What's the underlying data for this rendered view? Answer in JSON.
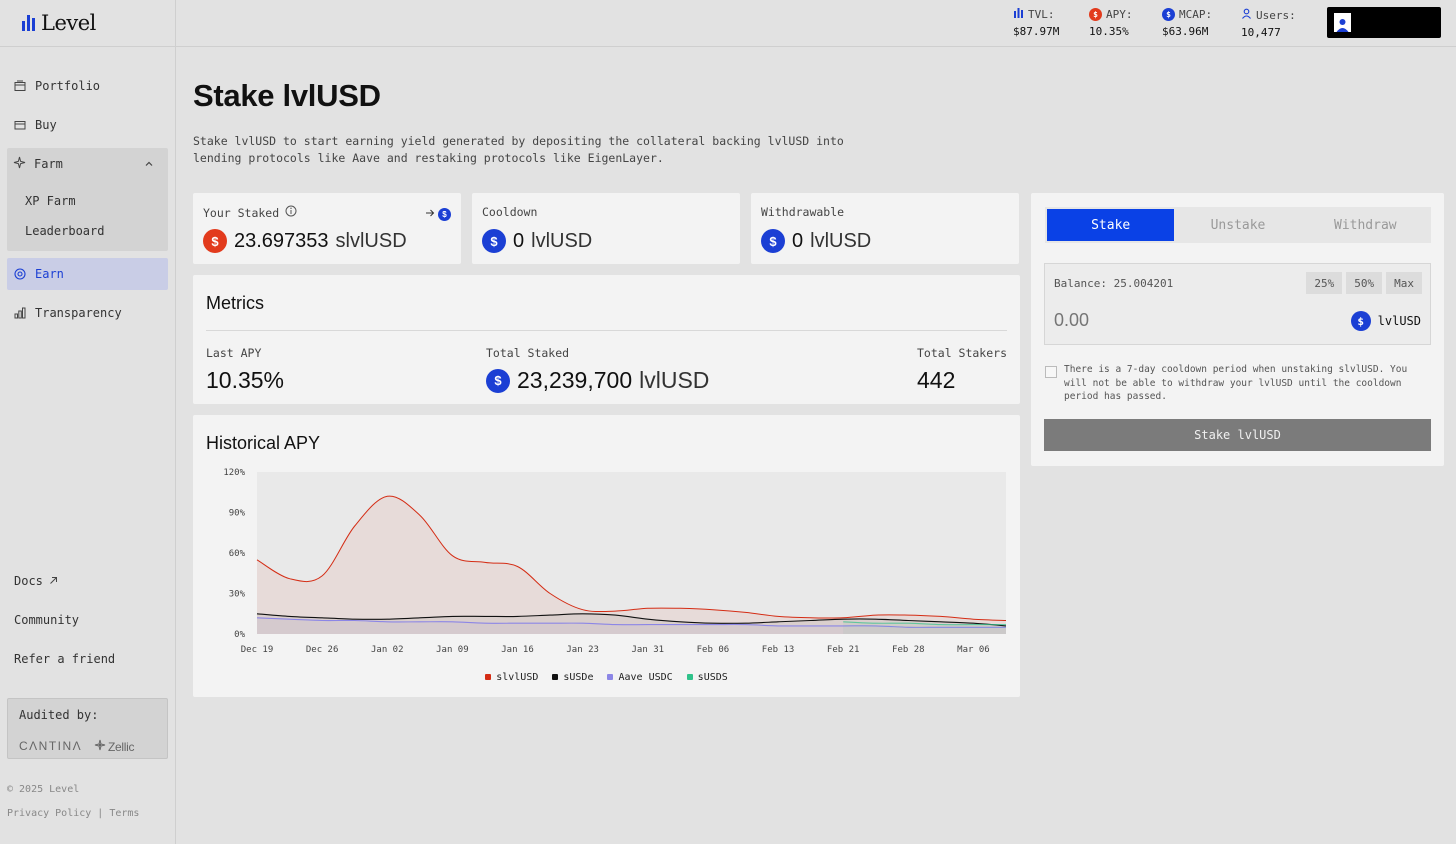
{
  "brand": {
    "name": "Level",
    "accent": "#1b3fd4"
  },
  "sidebar": {
    "items": [
      {
        "label": "Portfolio",
        "icon": "wallet-icon"
      },
      {
        "label": "Buy",
        "icon": "card-icon"
      },
      {
        "label": "Farm",
        "icon": "sparkle-icon",
        "expanded": true,
        "children": [
          "XP Farm",
          "Leaderboard"
        ]
      },
      {
        "label": "Earn",
        "icon": "target-icon",
        "active": true
      },
      {
        "label": "Transparency",
        "icon": "bar-chart-icon"
      }
    ],
    "links": [
      "Docs",
      "Community",
      "Refer a friend"
    ],
    "audit": {
      "title": "Audited by:",
      "auditors": [
        "CΛNTINΛ",
        "Zellic"
      ]
    },
    "copyright": "© 2025 Level",
    "legal": [
      "Privacy Policy",
      "|",
      "Terms"
    ]
  },
  "topbar": {
    "stats": [
      {
        "label": "TVL:",
        "value": "$87.97M",
        "icon": "level-icon"
      },
      {
        "label": "APY:",
        "value": "10.35%",
        "icon": "slvlusd-coin-icon"
      },
      {
        "label": "MCAP:",
        "value": "$63.96M",
        "icon": "lvlusd-coin-icon"
      },
      {
        "label": "Users:",
        "value": "10,477",
        "icon": "user-icon"
      }
    ]
  },
  "page": {
    "title": "Stake lvlUSD",
    "description": "Stake lvlUSD to start earning yield generated by depositing the collateral backing lvlUSD into lending protocols like Aave and restaking protocols like EigenLayer."
  },
  "cards": {
    "staked": {
      "label": "Your Staked",
      "amount": "23.697353",
      "unit": "slvlUSD"
    },
    "cooldown": {
      "label": "Cooldown",
      "amount": "0",
      "unit": "lvlUSD"
    },
    "withdrawable": {
      "label": "Withdrawable",
      "amount": "0",
      "unit": "lvlUSD"
    }
  },
  "metrics": {
    "title": "Metrics",
    "last_apy": {
      "label": "Last APY",
      "value": "10.35%"
    },
    "total_staked": {
      "label": "Total Staked",
      "value": "23,239,700",
      "unit": "lvlUSD"
    },
    "total_stakers": {
      "label": "Total Stakers",
      "value": "442"
    }
  },
  "historical": {
    "title": "Historical APY"
  },
  "chart_data": {
    "type": "area",
    "title": "Historical APY",
    "x": [
      "Dec 19",
      "Dec 22",
      "Dec 26",
      "Dec 29",
      "Jan 02",
      "Jan 06",
      "Jan 09",
      "Jan 13",
      "Jan 16",
      "Jan 20",
      "Jan 23",
      "Jan 27",
      "Jan 31",
      "Feb 03",
      "Feb 06",
      "Feb 10",
      "Feb 13",
      "Feb 17",
      "Feb 21",
      "Feb 25",
      "Feb 28",
      "Mar 03",
      "Mar 06",
      "Mar 08"
    ],
    "xticks": [
      "Dec 19",
      "Dec 26",
      "Jan 02",
      "Jan 09",
      "Jan 16",
      "Jan 23",
      "Jan 31",
      "Feb 06",
      "Feb 13",
      "Feb 21",
      "Feb 28",
      "Mar 06"
    ],
    "yticks": [
      "0%",
      "30%",
      "60%",
      "90%",
      "120%"
    ],
    "ylim": [
      0,
      120
    ],
    "series": [
      {
        "name": "slvlUSD",
        "color": "#d42c14",
        "values": [
          55,
          41,
          43,
          80,
          102,
          88,
          58,
          53,
          50,
          30,
          18,
          17,
          19,
          19,
          18,
          16,
          13,
          12,
          12,
          14,
          14,
          13,
          11,
          10
        ]
      },
      {
        "name": "sUSDe",
        "color": "#111111",
        "values": [
          15,
          13,
          12,
          11,
          11,
          12,
          13,
          13,
          13,
          14,
          15,
          14,
          11,
          9,
          8,
          8,
          9,
          10,
          11,
          11,
          10,
          9,
          8,
          6
        ]
      },
      {
        "name": "Aave USDC",
        "color": "#8c86e6",
        "values": [
          12,
          11,
          10,
          10,
          9,
          9,
          9,
          8,
          8,
          8,
          8,
          7,
          7,
          7,
          7,
          7,
          6,
          6,
          6,
          6,
          5,
          5,
          5,
          5
        ]
      },
      {
        "name": "sUSDS",
        "color": "#2fc28a",
        "values": [
          null,
          null,
          null,
          null,
          null,
          null,
          null,
          null,
          null,
          null,
          null,
          null,
          null,
          null,
          null,
          null,
          null,
          null,
          9,
          8,
          8,
          7,
          7,
          7
        ]
      }
    ],
    "legend": "bottom-center"
  },
  "stake_panel": {
    "tabs": [
      "Stake",
      "Unstake",
      "Withdraw"
    ],
    "active_tab": "Stake",
    "balance_label": "Balance: 25.004201",
    "percent_buttons": [
      "25%",
      "50%",
      "Max"
    ],
    "amount_placeholder": "0.00",
    "token": "lvlUSD",
    "notice": "There is a 7-day cooldown period when unstaking slvlUSD. You will not be able to withdraw your lvlUSD until the cooldown period has passed.",
    "submit_label": "Stake lvlUSD"
  }
}
